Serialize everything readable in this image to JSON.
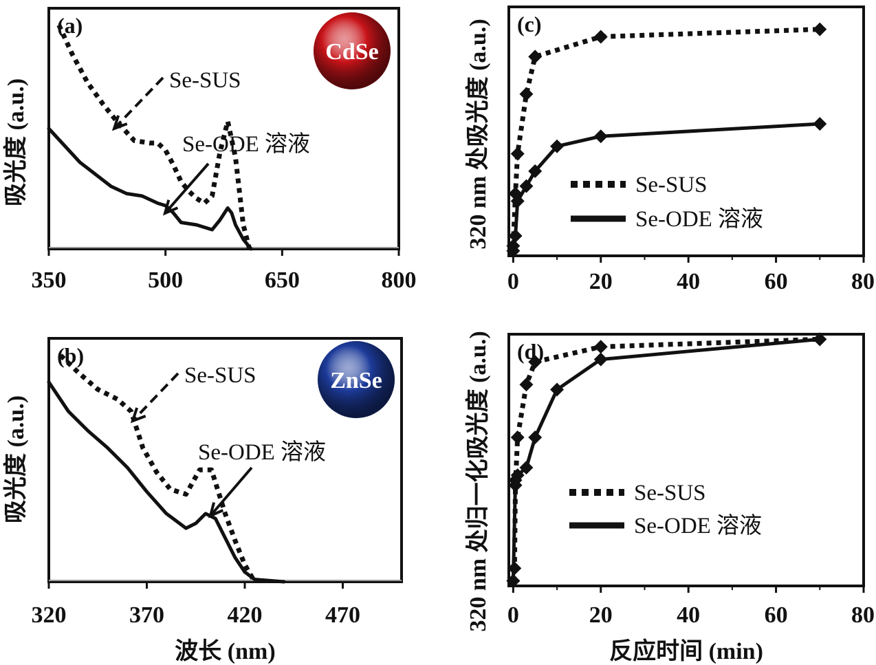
{
  "chart_data": [
    {
      "id": "a",
      "type": "line",
      "panel_label": "(a)",
      "badge": {
        "text": "CdSe",
        "color": "#c8141a"
      },
      "ylabel": "吸光度 (a.u.)",
      "xlabel": "",
      "xlim": [
        350,
        800
      ],
      "xticks": [
        "350",
        "500",
        "650",
        "800"
      ],
      "ylim": [
        0,
        1
      ],
      "annotations": [
        "Se-SUS",
        "Se-ODE 溶液"
      ],
      "series": [
        {
          "name": "Se-SUS",
          "style": "dotted",
          "x": [
            363,
            380,
            400,
            420,
            440,
            460,
            480,
            490,
            500,
            510,
            520,
            530,
            540,
            550,
            560,
            570,
            580,
            590,
            600,
            608
          ],
          "y": [
            0.93,
            0.81,
            0.69,
            0.6,
            0.52,
            0.45,
            0.44,
            0.44,
            0.41,
            0.35,
            0.28,
            0.24,
            0.21,
            0.19,
            0.22,
            0.4,
            0.53,
            0.38,
            0.1,
            0.0
          ]
        },
        {
          "name": "Se-ODE 溶液",
          "style": "solid",
          "x": [
            350,
            370,
            390,
            410,
            430,
            450,
            470,
            490,
            500,
            510,
            520,
            540,
            560,
            570,
            580,
            585,
            590,
            600,
            610
          ],
          "y": [
            0.5,
            0.43,
            0.36,
            0.31,
            0.26,
            0.23,
            0.22,
            0.19,
            0.18,
            0.15,
            0.11,
            0.1,
            0.08,
            0.12,
            0.17,
            0.15,
            0.1,
            0.04,
            0.0
          ]
        }
      ]
    },
    {
      "id": "b",
      "type": "line",
      "panel_label": "(b)",
      "badge": {
        "text": "ZnSe",
        "color": "#1d3b9a"
      },
      "ylabel": "吸光度 (a.u.)",
      "xlabel": "波长 (nm)",
      "xlim": [
        320,
        500
      ],
      "xticks": [
        "320",
        "370",
        "420",
        "470"
      ],
      "ylim": [
        0,
        1
      ],
      "annotations": [
        "Se-SUS",
        "Se-ODE 溶液"
      ],
      "series": [
        {
          "name": "Se-SUS",
          "style": "dotted",
          "x": [
            326,
            335,
            345,
            355,
            362,
            368,
            375,
            382,
            390,
            397,
            403,
            410,
            415,
            420,
            425
          ],
          "y": [
            0.93,
            0.86,
            0.79,
            0.75,
            0.7,
            0.55,
            0.45,
            0.38,
            0.36,
            0.46,
            0.46,
            0.28,
            0.17,
            0.07,
            0.0
          ]
        },
        {
          "name": "Se-ODE 溶液",
          "style": "solid",
          "x": [
            320,
            330,
            340,
            350,
            360,
            370,
            380,
            385,
            390,
            395,
            400,
            405,
            410,
            415,
            420,
            425,
            440
          ],
          "y": [
            0.82,
            0.7,
            0.62,
            0.55,
            0.47,
            0.37,
            0.28,
            0.25,
            0.22,
            0.24,
            0.28,
            0.26,
            0.18,
            0.1,
            0.04,
            0.01,
            0.0
          ]
        }
      ]
    },
    {
      "id": "c",
      "type": "line",
      "panel_label": "(c)",
      "ylabel": "320 nm 处吸光度 (a.u.)",
      "xlabel": "",
      "xlim": [
        -1,
        80
      ],
      "xticks": [
        "0",
        "20",
        "40",
        "60",
        "80"
      ],
      "ylim": [
        0,
        1
      ],
      "legend": {
        "position": "center-left",
        "entries": [
          "Se-SUS",
          "Se-ODE 溶液"
        ]
      },
      "series": [
        {
          "name": "Se-SUS",
          "style": "dotted",
          "marker": "diamond",
          "x": [
            0,
            0.5,
            1,
            3,
            5,
            20,
            70
          ],
          "y": [
            0.04,
            0.25,
            0.41,
            0.65,
            0.8,
            0.88,
            0.91
          ]
        },
        {
          "name": "Se-ODE 溶液",
          "style": "solid",
          "marker": "diamond",
          "x": [
            0,
            0.5,
            1,
            3,
            5,
            10,
            20,
            70
          ],
          "y": [
            0.02,
            0.08,
            0.22,
            0.28,
            0.34,
            0.44,
            0.48,
            0.53
          ]
        }
      ]
    },
    {
      "id": "d",
      "type": "line",
      "panel_label": "(d)",
      "ylabel": "320 nm 处归一化吸光度 (a.u.)",
      "xlabel": "反应时间 (min)",
      "xlim": [
        -1,
        80
      ],
      "xticks": [
        "0",
        "20",
        "40",
        "60",
        "80"
      ],
      "ylim": [
        0,
        1
      ],
      "legend": {
        "position": "center-left",
        "entries": [
          "Se-SUS",
          "Se-ODE 溶液"
        ]
      },
      "series": [
        {
          "name": "Se-SUS",
          "style": "dotted",
          "marker": "diamond",
          "x": [
            0,
            0.3,
            0.5,
            1,
            3,
            5,
            20,
            70
          ],
          "y": [
            0.02,
            0.07,
            0.4,
            0.59,
            0.8,
            0.89,
            0.95,
            0.98
          ]
        },
        {
          "name": "Se-ODE 溶液",
          "style": "solid",
          "marker": "diamond",
          "x": [
            0,
            0.5,
            1,
            3,
            5,
            10,
            20,
            70
          ],
          "y": [
            0.02,
            0.42,
            0.44,
            0.47,
            0.59,
            0.78,
            0.9,
            0.98
          ]
        }
      ]
    }
  ]
}
